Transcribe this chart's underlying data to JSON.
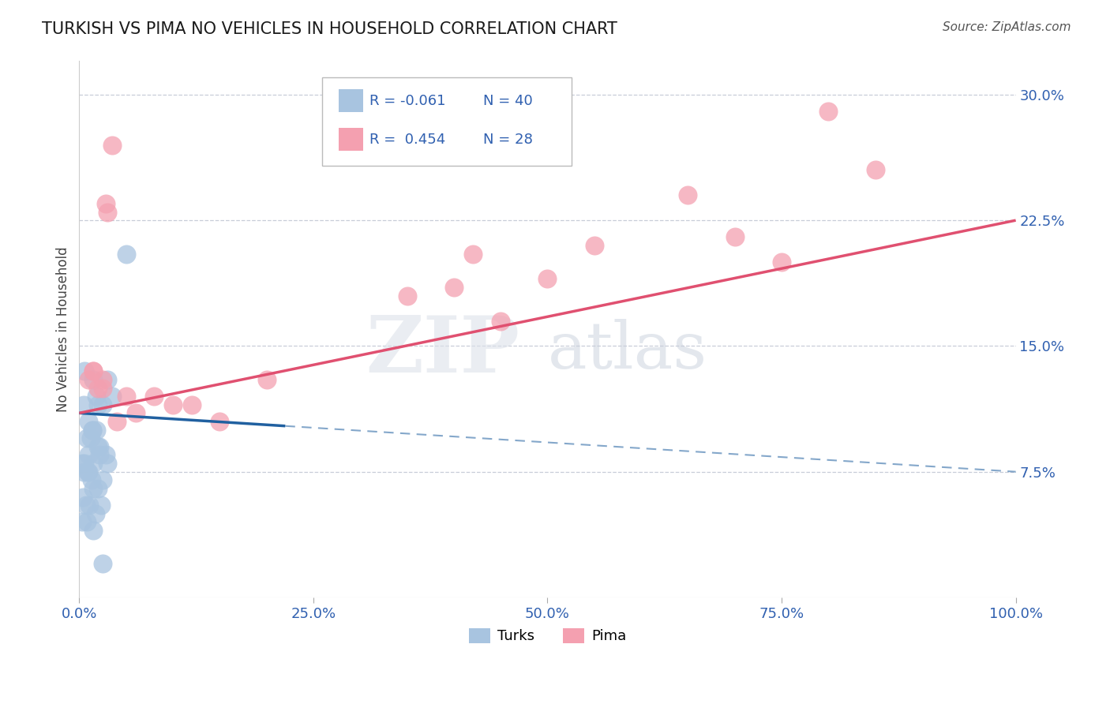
{
  "title": "TURKISH VS PIMA NO VEHICLES IN HOUSEHOLD CORRELATION CHART",
  "source": "Source: ZipAtlas.com",
  "xlabel_tick_vals": [
    0,
    25,
    50,
    75,
    100
  ],
  "ylabel": "No Vehicles in Household",
  "ylabel_tick_vals": [
    7.5,
    15.0,
    22.5,
    30.0
  ],
  "xlim": [
    0,
    100
  ],
  "ylim": [
    0,
    32
  ],
  "turks_r": -0.061,
  "turks_n": 40,
  "pima_r": 0.454,
  "pima_n": 28,
  "turks_color": "#a8c4e0",
  "pima_color": "#f4a0b0",
  "turks_line_color": "#2060a0",
  "pima_line_color": "#e05070",
  "watermark_zip": "ZIP",
  "watermark_atlas": "atlas",
  "turks_x": [
    0.3,
    0.5,
    0.5,
    0.6,
    0.7,
    0.8,
    0.9,
    1.0,
    1.0,
    1.1,
    1.2,
    1.3,
    1.4,
    1.5,
    1.5,
    1.5,
    1.7,
    1.8,
    1.8,
    2.0,
    2.0,
    2.0,
    2.2,
    2.3,
    2.5,
    2.5,
    2.8,
    3.0,
    3.0,
    3.5,
    0.4,
    0.6,
    0.8,
    1.0,
    1.4,
    2.2,
    0.3,
    1.5,
    2.5,
    5.0
  ],
  "turks_y": [
    8.0,
    7.5,
    11.5,
    8.0,
    5.5,
    9.5,
    7.5,
    7.5,
    10.5,
    5.5,
    9.5,
    7.0,
    10.0,
    6.5,
    8.0,
    13.0,
    5.0,
    10.0,
    12.0,
    6.5,
    9.0,
    11.5,
    8.5,
    5.5,
    7.0,
    11.5,
    8.5,
    8.0,
    13.0,
    12.0,
    6.0,
    13.5,
    4.5,
    8.5,
    10.0,
    9.0,
    4.5,
    4.0,
    2.0,
    20.5
  ],
  "pima_x": [
    1.0,
    1.5,
    2.0,
    2.5,
    2.8,
    3.5,
    5.0,
    10.0,
    12.0,
    15.0,
    20.0,
    35.0,
    40.0,
    42.0,
    45.0,
    50.0,
    55.0,
    65.0,
    70.0,
    75.0,
    80.0,
    85.0,
    4.0,
    6.0,
    8.0,
    3.0,
    1.5,
    2.5
  ],
  "pima_y": [
    13.0,
    13.5,
    12.5,
    12.5,
    23.5,
    27.0,
    12.0,
    11.5,
    11.5,
    10.5,
    13.0,
    18.0,
    18.5,
    20.5,
    16.5,
    19.0,
    21.0,
    24.0,
    21.5,
    20.0,
    29.0,
    25.5,
    10.5,
    11.0,
    12.0,
    23.0,
    13.5,
    13.0
  ]
}
